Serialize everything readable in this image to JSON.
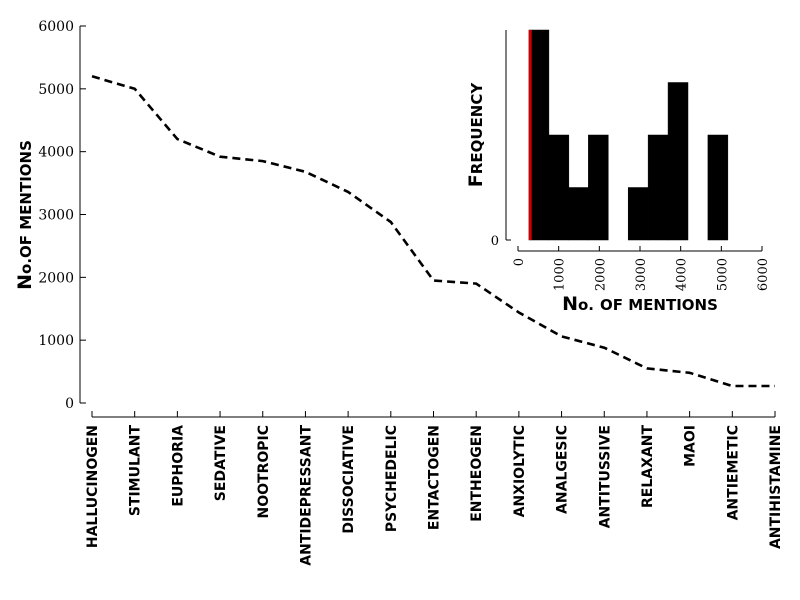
{
  "chart_data": [
    {
      "type": "line",
      "ylabel": {
        "cap1": "N",
        "small1": "o.",
        "cap2": "",
        "small2": "of mentions"
      },
      "ylim": [
        0,
        6000
      ],
      "yticks": [
        0,
        1000,
        2000,
        3000,
        4000,
        5000,
        6000
      ],
      "categories": [
        "HALLUCINOGEN",
        "STIMULANT",
        "EUPHORIA",
        "SEDATIVE",
        "NOOTROPIC",
        "ANTIDEPRESSANT",
        "DISSOCIATIVE",
        "PSYCHEDELIC",
        "ENTACTOGEN",
        "ENTHEOGEN",
        "ANXIOLYTIC",
        "ANALGESIC",
        "ANTITUSSIVE",
        "RELAXANT",
        "MAOI",
        "ANTIEMETIC",
        "ANTIHISTAMINE"
      ],
      "values": [
        5200,
        5000,
        4200,
        3920,
        3850,
        3680,
        3360,
        2880,
        1950,
        1900,
        1440,
        1060,
        880,
        550,
        480,
        270,
        270
      ],
      "line_style": "dashed",
      "color": "#000000"
    },
    {
      "type": "histogram",
      "ylabel": {
        "cap1": "F",
        "small1": "requency"
      },
      "xlabel": {
        "cap1": "N",
        "small1": "o.",
        "small2": "of mentions"
      },
      "xlim": [
        0,
        6000
      ],
      "xticks": [
        0,
        1000,
        2000,
        3000,
        4000,
        5000,
        6000
      ],
      "yticks": [
        0
      ],
      "bins": [
        {
          "start": 270,
          "end": 760,
          "count": 4
        },
        {
          "start": 760,
          "end": 1250,
          "count": 2
        },
        {
          "start": 1250,
          "end": 1730,
          "count": 1
        },
        {
          "start": 1730,
          "end": 2220,
          "count": 2
        },
        {
          "start": 2220,
          "end": 2710,
          "count": 0
        },
        {
          "start": 2710,
          "end": 3200,
          "count": 1
        },
        {
          "start": 3200,
          "end": 3690,
          "count": 2
        },
        {
          "start": 3690,
          "end": 4180,
          "count": 3
        },
        {
          "start": 4180,
          "end": 4670,
          "count": 0
        },
        {
          "start": 4670,
          "end": 5160,
          "count": 2
        }
      ],
      "bar_color": "#000000",
      "marker": {
        "x": 300,
        "color": "#cc0000"
      }
    }
  ]
}
